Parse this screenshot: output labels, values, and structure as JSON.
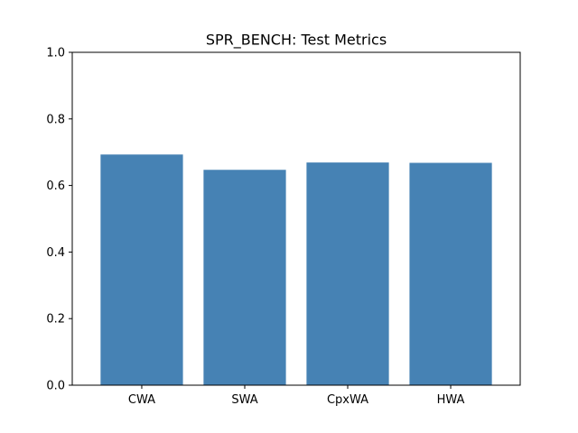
{
  "chart_data": {
    "type": "bar",
    "title": "SPR_BENCH: Test Metrics",
    "xlabel": "",
    "ylabel": "",
    "categories": [
      "CWA",
      "SWA",
      "CpxWA",
      "HWA"
    ],
    "values": [
      0.693,
      0.647,
      0.669,
      0.668
    ],
    "ylim": [
      0.0,
      1.0
    ],
    "yticks": [
      0.0,
      0.2,
      0.4,
      0.6,
      0.8,
      1.0
    ],
    "ytick_labels": [
      "0.0",
      "0.2",
      "0.4",
      "0.6",
      "0.8",
      "1.0"
    ],
    "bar_color": "#4682b4",
    "grid": false,
    "legend": "none"
  }
}
